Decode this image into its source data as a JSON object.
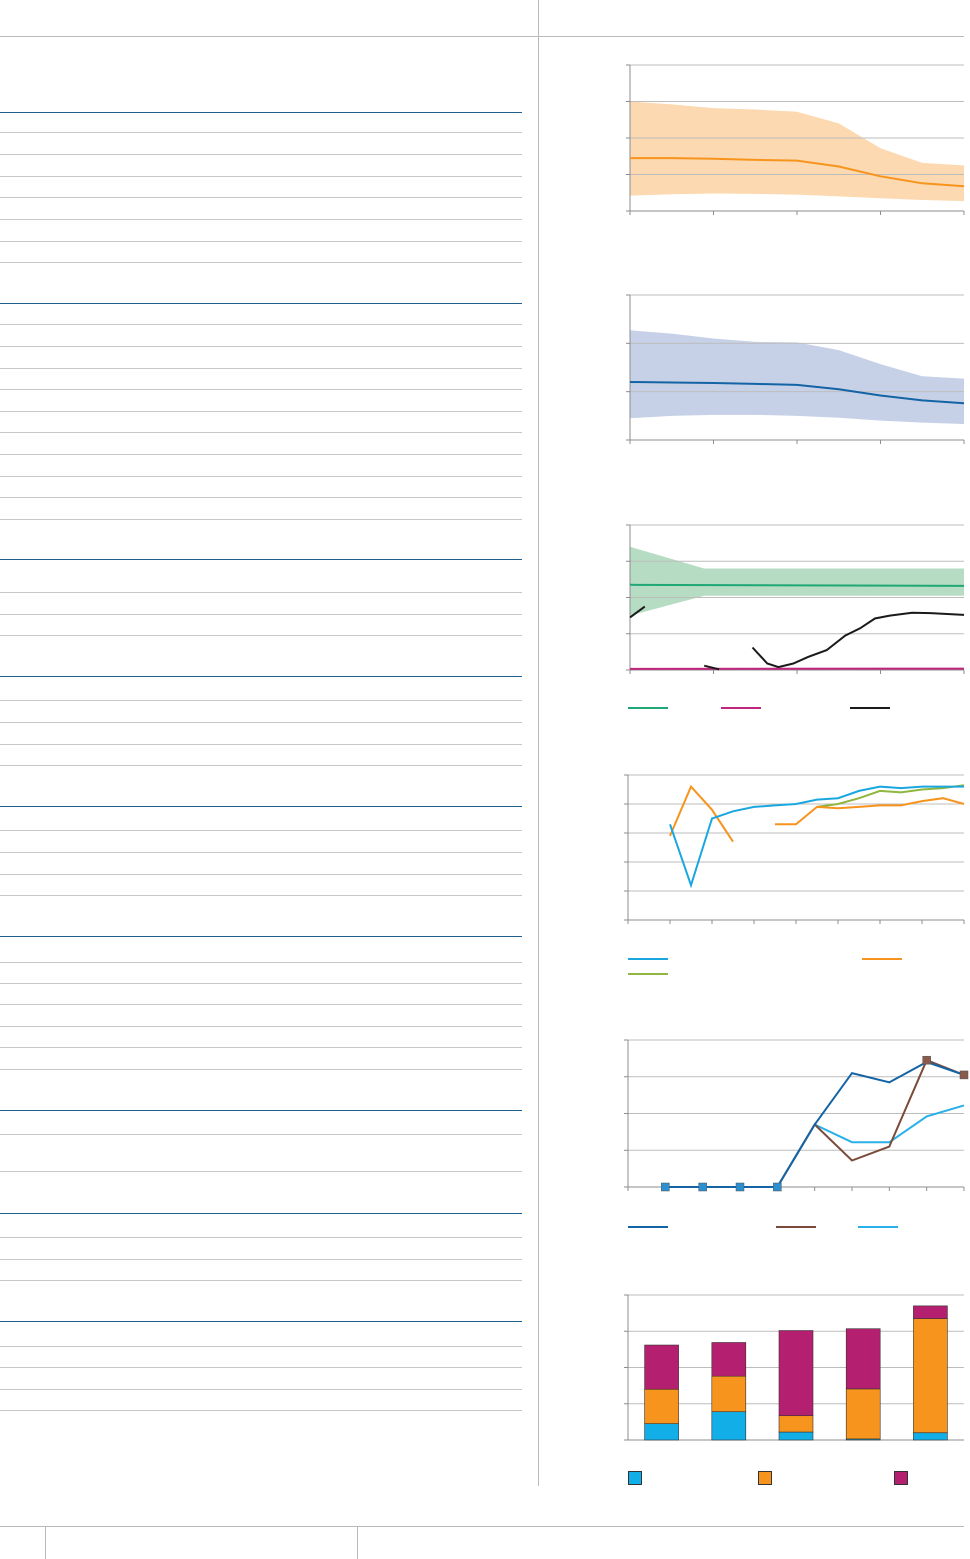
{
  "colors": {
    "orange": "#f7941d",
    "orange_band": "#fcd9b0",
    "blue": "#1464a5",
    "blue_band": "#c6d1e8",
    "green": "#1fa776",
    "green_band": "#b6dcc3",
    "magenta": "#c0267d",
    "black": "#1a1a1a",
    "cyan": "#1aa7e0",
    "olive": "#8fb63f",
    "brown": "#7a4b3a",
    "lightblue": "#29b0e8",
    "bar_cyan": "#12aee8",
    "bar_orange": "#f7941d",
    "bar_magenta": "#b4206f"
  },
  "chart_data": [
    {
      "type": "area",
      "title": "",
      "x": [
        0,
        1,
        2,
        3,
        4,
        5,
        6,
        7,
        8
      ],
      "ylim": [
        0,
        4
      ],
      "yticks": 5,
      "xticks": 5,
      "series": [
        {
          "role": "upper",
          "values": [
            3.0,
            2.92,
            2.82,
            2.78,
            2.72,
            2.4,
            1.72,
            1.32,
            1.25
          ]
        },
        {
          "role": "median",
          "values": [
            1.45,
            1.45,
            1.43,
            1.4,
            1.38,
            1.22,
            0.95,
            0.76,
            0.68
          ]
        },
        {
          "role": "lower",
          "values": [
            0.42,
            0.46,
            0.48,
            0.47,
            0.45,
            0.4,
            0.35,
            0.3,
            0.27
          ]
        }
      ]
    },
    {
      "type": "area",
      "title": "",
      "x": [
        0,
        1,
        2,
        3,
        4,
        5,
        6,
        7,
        8
      ],
      "ylim": [
        0,
        3
      ],
      "yticks": 4,
      "xticks": 5,
      "series": [
        {
          "role": "upper",
          "values": [
            2.27,
            2.2,
            2.1,
            2.03,
            2.02,
            1.86,
            1.57,
            1.32,
            1.27
          ]
        },
        {
          "role": "median",
          "values": [
            1.2,
            1.19,
            1.18,
            1.16,
            1.14,
            1.05,
            0.92,
            0.82,
            0.76
          ]
        },
        {
          "role": "lower",
          "values": [
            0.45,
            0.5,
            0.52,
            0.52,
            0.5,
            0.46,
            0.4,
            0.36,
            0.33
          ]
        }
      ]
    },
    {
      "type": "line",
      "title": "",
      "ylim": [
        0,
        4
      ],
      "yticks": 5,
      "xticks": 5,
      "band": {
        "x": [
          0,
          2,
          9
        ],
        "upper": [
          3.4,
          2.8,
          2.8
        ],
        "lower": [
          1.5,
          2.05,
          2.05
        ]
      },
      "series": [
        {
          "role": "flat",
          "x": [
            0,
            9
          ],
          "values": [
            2.35,
            2.32
          ]
        },
        {
          "role": "magenta",
          "x": [
            0,
            9
          ],
          "values": [
            0.03,
            0.04
          ]
        },
        {
          "role": "black",
          "segments": [
            {
              "x": [
                0,
                0.4
              ],
              "values": [
                1.45,
                1.75
              ]
            },
            {
              "x": [
                2.0,
                2.4
              ],
              "values": [
                0.12,
                0.02
              ]
            },
            {
              "x": [
                3.3,
                3.7,
                4.0,
                4.4,
                4.8,
                5.3,
                5.8,
                6.2,
                6.6,
                7.0,
                7.6,
                8.1,
                8.8,
                9.0
              ],
              "values": [
                0.62,
                0.18,
                0.08,
                0.18,
                0.36,
                0.55,
                0.95,
                1.15,
                1.42,
                1.5,
                1.58,
                1.57,
                1.53,
                1.52
              ]
            }
          ]
        }
      ],
      "legend": {
        "placement": "bottom",
        "entries": [
          "",
          "",
          ""
        ]
      }
    },
    {
      "type": "line",
      "title": "",
      "ylim": [
        0,
        5
      ],
      "yticks": 6,
      "xticks": 9,
      "series": [
        {
          "role": "cyan",
          "x": [
            1,
            1.5,
            2,
            2.5,
            3,
            3.5,
            4,
            4.5,
            5,
            5.5,
            6,
            6.5,
            7,
            7.5,
            8
          ],
          "values": [
            3.3,
            1.2,
            3.5,
            3.75,
            3.9,
            3.95,
            4.0,
            4.15,
            4.2,
            4.45,
            4.6,
            4.55,
            4.6,
            4.6,
            4.6
          ]
        },
        {
          "role": "orange",
          "segments": [
            {
              "x": [
                1,
                1.5,
                2,
                2.5
              ],
              "values": [
                2.9,
                4.6,
                3.8,
                2.7
              ]
            },
            {
              "x": [
                3.5,
                4,
                4.5,
                5,
                5.5,
                6,
                6.5,
                7,
                7.5,
                8
              ],
              "values": [
                3.3,
                3.3,
                3.9,
                3.85,
                3.9,
                3.95,
                3.95,
                4.1,
                4.2,
                4.0
              ]
            }
          ]
        },
        {
          "role": "olive",
          "x": [
            4.5,
            5,
            5.5,
            6,
            6.5,
            7,
            7.5,
            8
          ],
          "values": [
            3.9,
            4.0,
            4.2,
            4.45,
            4.4,
            4.5,
            4.55,
            4.65
          ]
        }
      ],
      "legend": {
        "placement": "bottom",
        "entries": [
          "",
          "",
          ""
        ]
      }
    },
    {
      "type": "line",
      "title": "",
      "ylim": [
        0,
        4
      ],
      "yticks": 5,
      "xticks": 10,
      "series": [
        {
          "role": "darkblue",
          "x": [
            1,
            2,
            3,
            4,
            5,
            6,
            7,
            8,
            9
          ],
          "values": [
            0,
            0,
            0,
            0,
            1.7,
            3.1,
            2.85,
            3.4,
            3.05
          ]
        },
        {
          "role": "brown",
          "x": [
            4,
            5,
            6,
            7,
            8,
            9
          ],
          "values": [
            0,
            1.7,
            0.72,
            1.1,
            3.45,
            3.05
          ]
        },
        {
          "role": "lightblue",
          "x": [
            4,
            5,
            6,
            7,
            8,
            9
          ],
          "values": [
            0,
            1.7,
            1.22,
            1.22,
            1.92,
            2.22
          ]
        }
      ],
      "markers": [
        {
          "color": "blue",
          "x": [
            1,
            2,
            3,
            4
          ],
          "values": [
            0,
            0,
            0,
            0
          ]
        },
        {
          "color": "brown",
          "x": [
            8,
            9
          ],
          "values": [
            3.45,
            3.05
          ]
        }
      ],
      "legend": {
        "placement": "bottom",
        "entries": [
          "",
          "",
          ""
        ]
      }
    },
    {
      "type": "bar",
      "stacked": true,
      "title": "",
      "categories": [
        "",
        "",
        "",
        "",
        ""
      ],
      "ylim": [
        0,
        4
      ],
      "yticks": 5,
      "series": [
        {
          "name": "",
          "color": "bar_cyan",
          "values": [
            0.45,
            0.78,
            0.22,
            0.03,
            0.2
          ]
        },
        {
          "name": "",
          "color": "bar_orange",
          "values": [
            0.95,
            0.98,
            0.45,
            1.38,
            3.15
          ]
        },
        {
          "name": "",
          "color": "bar_magenta",
          "values": [
            1.22,
            0.93,
            2.35,
            1.66,
            0.35
          ]
        }
      ],
      "legend": {
        "placement": "bottom",
        "entries": [
          "",
          "",
          ""
        ]
      }
    }
  ]
}
